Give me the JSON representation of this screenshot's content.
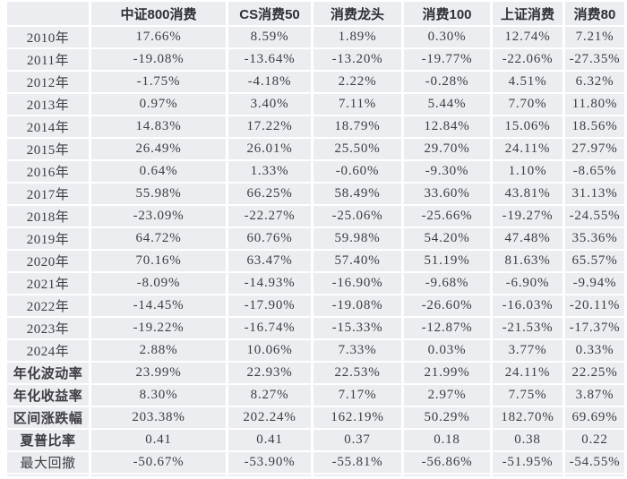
{
  "chart_data": {
    "type": "table",
    "title": "",
    "columns": [
      "",
      "中证800消费",
      "CS消费50",
      "消费龙头",
      "消费100",
      "上证消费",
      "消费80"
    ],
    "rows": [
      {
        "label": "2010年",
        "bold": false,
        "values": [
          "17.66%",
          "8.59%",
          "1.89%",
          "0.30%",
          "12.74%",
          "7.21%"
        ]
      },
      {
        "label": "2011年",
        "bold": false,
        "values": [
          "-19.08%",
          "-13.64%",
          "-13.20%",
          "-19.77%",
          "-22.06%",
          "-27.35%"
        ]
      },
      {
        "label": "2012年",
        "bold": false,
        "values": [
          "-1.75%",
          "-4.18%",
          "2.22%",
          "-0.28%",
          "4.51%",
          "6.32%"
        ]
      },
      {
        "label": "2013年",
        "bold": false,
        "values": [
          "0.97%",
          "3.40%",
          "7.11%",
          "5.44%",
          "7.70%",
          "11.80%"
        ]
      },
      {
        "label": "2014年",
        "bold": false,
        "values": [
          "14.83%",
          "17.22%",
          "18.79%",
          "12.84%",
          "15.06%",
          "18.56%"
        ]
      },
      {
        "label": "2015年",
        "bold": false,
        "values": [
          "26.49%",
          "26.01%",
          "25.50%",
          "29.70%",
          "24.11%",
          "27.97%"
        ]
      },
      {
        "label": "2016年",
        "bold": false,
        "values": [
          "0.64%",
          "1.33%",
          "-0.60%",
          "-9.30%",
          "1.10%",
          "-8.65%"
        ]
      },
      {
        "label": "2017年",
        "bold": false,
        "values": [
          "55.98%",
          "66.25%",
          "58.49%",
          "33.60%",
          "43.81%",
          "31.13%"
        ]
      },
      {
        "label": "2018年",
        "bold": false,
        "values": [
          "-23.09%",
          "-22.27%",
          "-25.06%",
          "-25.66%",
          "-19.27%",
          "-24.55%"
        ]
      },
      {
        "label": "2019年",
        "bold": false,
        "values": [
          "64.72%",
          "60.76%",
          "59.98%",
          "54.20%",
          "47.48%",
          "35.36%"
        ]
      },
      {
        "label": "2020年",
        "bold": false,
        "values": [
          "70.16%",
          "63.47%",
          "57.40%",
          "51.19%",
          "81.63%",
          "65.57%"
        ]
      },
      {
        "label": "2021年",
        "bold": false,
        "values": [
          "-8.09%",
          "-14.93%",
          "-16.90%",
          "-9.68%",
          "-6.90%",
          "-9.94%"
        ]
      },
      {
        "label": "2022年",
        "bold": false,
        "values": [
          "-14.45%",
          "-17.90%",
          "-19.08%",
          "-26.60%",
          "-16.03%",
          "-20.11%"
        ]
      },
      {
        "label": "2023年",
        "bold": false,
        "values": [
          "-19.22%",
          "-16.74%",
          "-15.33%",
          "-12.87%",
          "-21.53%",
          "-17.37%"
        ]
      },
      {
        "label": "2024年",
        "bold": false,
        "values": [
          "2.88%",
          "10.06%",
          "7.33%",
          "0.03%",
          "3.77%",
          "0.33%"
        ]
      },
      {
        "label": "年化波动率",
        "bold": true,
        "values": [
          "23.99%",
          "22.93%",
          "22.53%",
          "21.99%",
          "24.11%",
          "22.25%"
        ]
      },
      {
        "label": "年化收益率",
        "bold": true,
        "values": [
          "8.30%",
          "8.27%",
          "7.17%",
          "2.97%",
          "7.75%",
          "3.87%"
        ]
      },
      {
        "label": "区间涨跌幅",
        "bold": true,
        "values": [
          "203.38%",
          "202.24%",
          "162.19%",
          "50.29%",
          "182.70%",
          "69.69%"
        ]
      },
      {
        "label": "夏普比率",
        "bold": true,
        "values": [
          "0.41",
          "0.41",
          "0.37",
          "0.18",
          "0.38",
          "0.22"
        ]
      },
      {
        "label": "最大回撤",
        "bold": false,
        "values": [
          "-50.67%",
          "-53.90%",
          "-55.81%",
          "-56.86%",
          "-51.95%",
          "-54.55%"
        ]
      }
    ],
    "layout": {
      "grid": "off",
      "cell_background": "#ebedf1",
      "gap_color": "#ffffff",
      "text_color": "#3d3d42"
    }
  }
}
